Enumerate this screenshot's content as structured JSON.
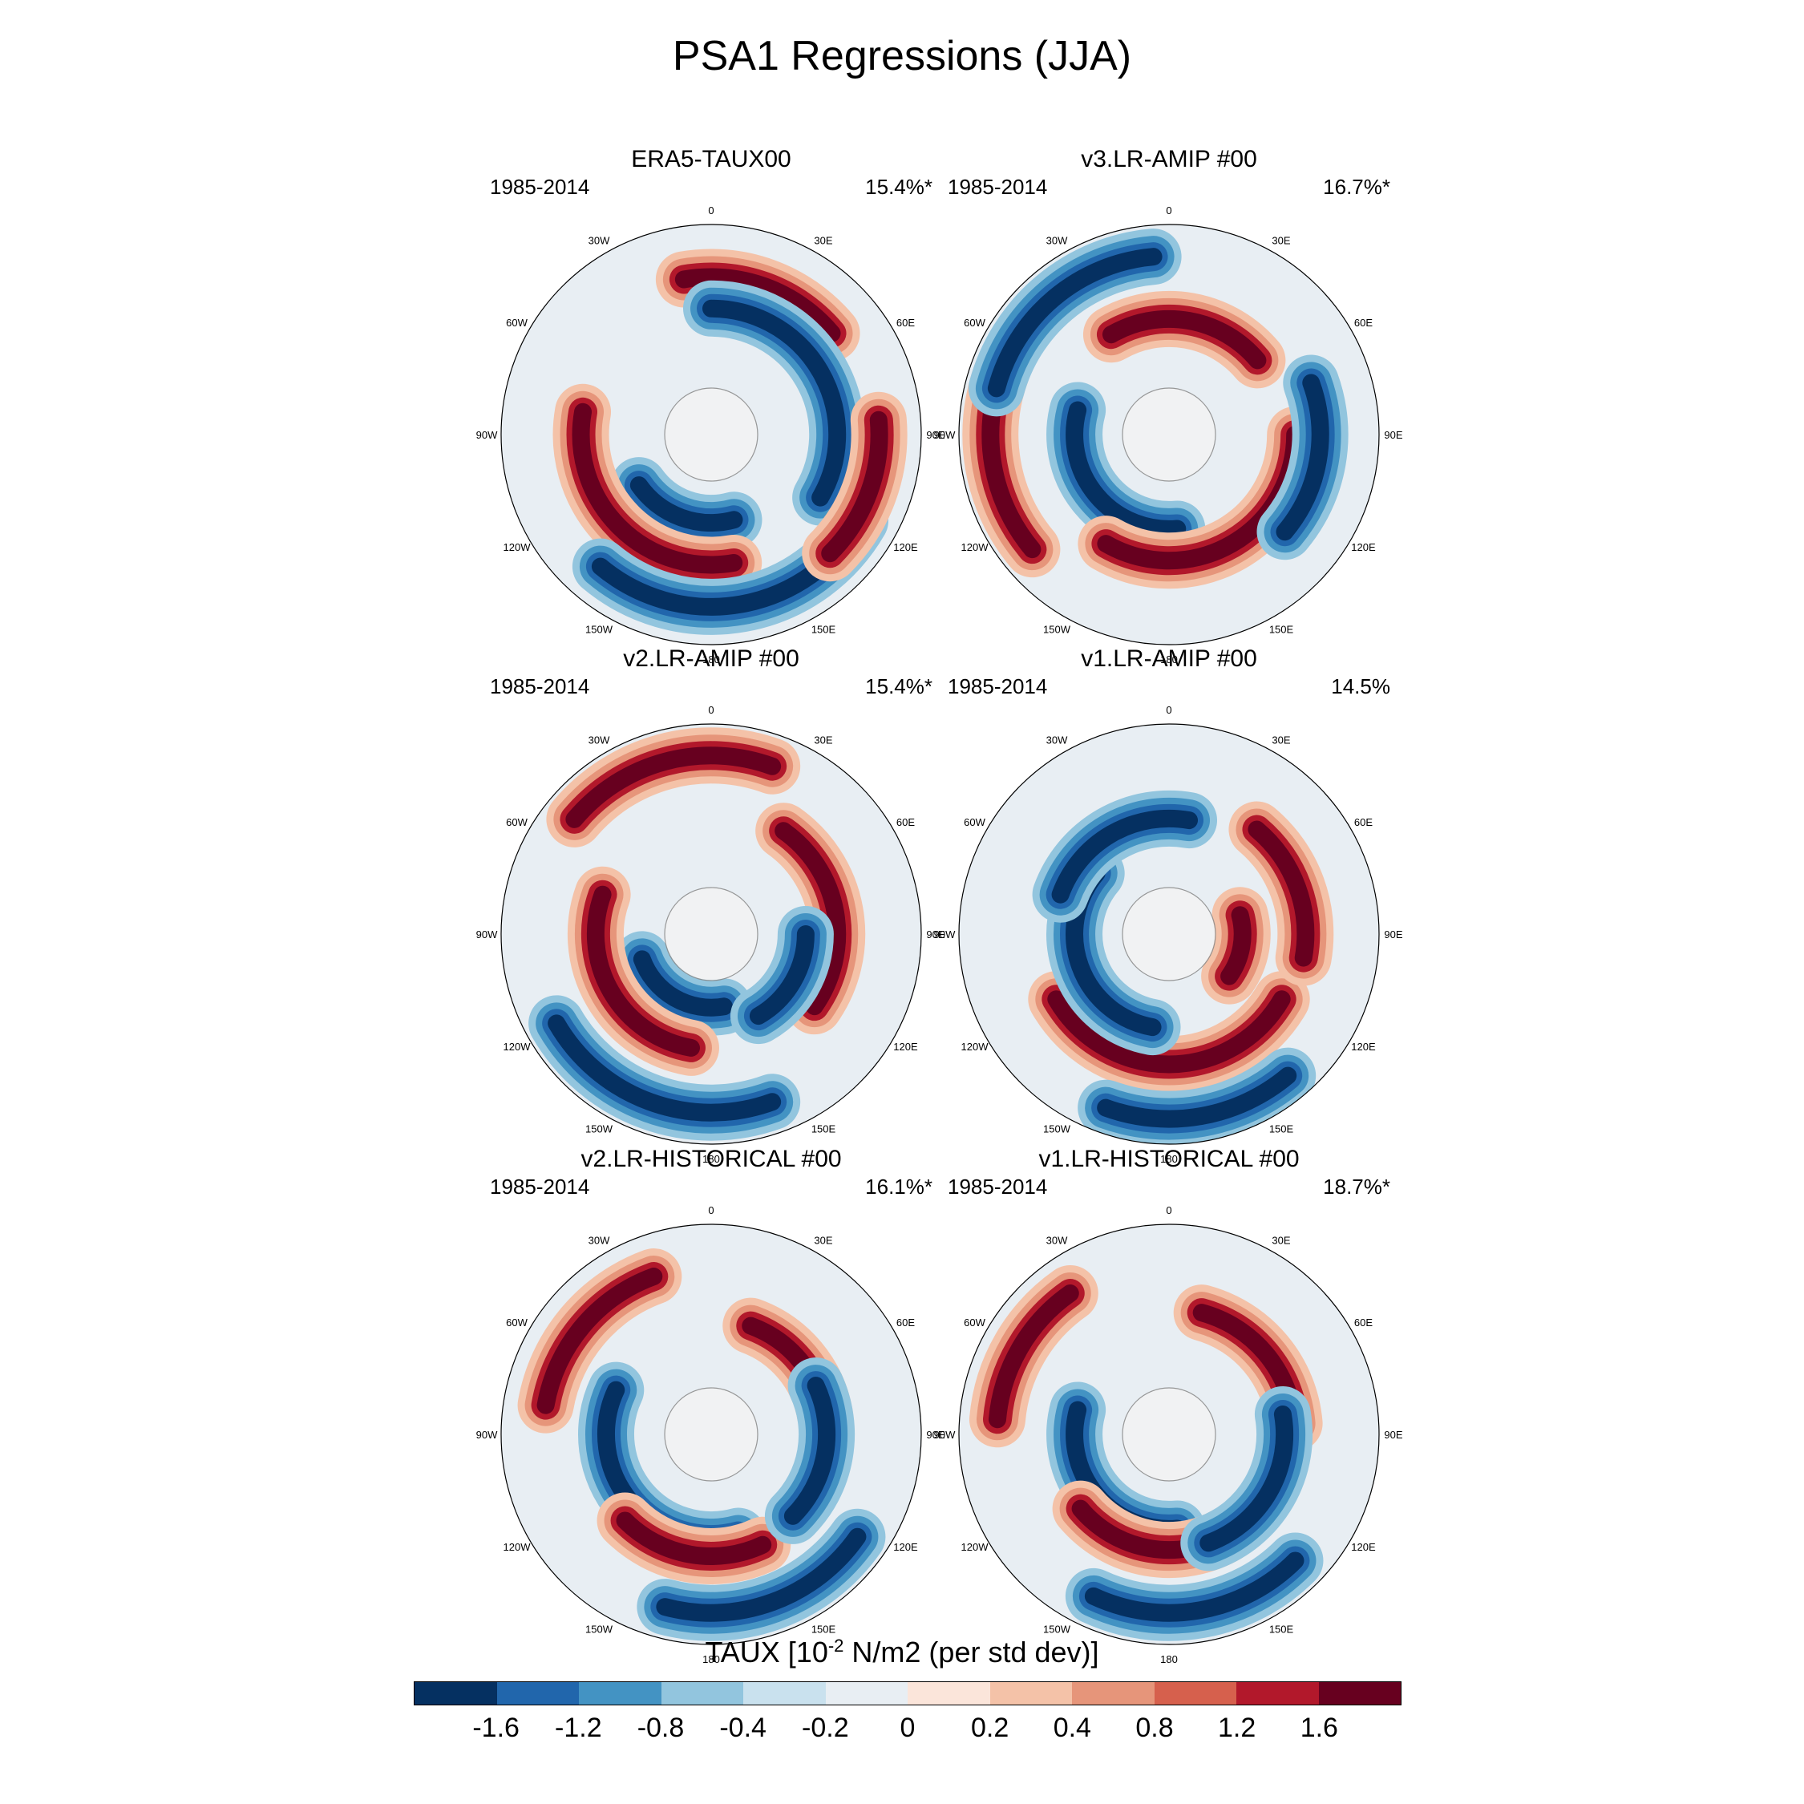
{
  "title": "PSA1 Regressions (JJA)",
  "colorbar": {
    "title_prefix": "TAUX [10",
    "title_exp": "-2",
    "title_suffix": " N/m2 (per std dev)]",
    "colors": [
      "#053061",
      "#2166ac",
      "#4393c3",
      "#92c5de",
      "#c9e1ee",
      "#e8eef3",
      "#fbe5da",
      "#f4c2a8",
      "#e6957a",
      "#d6604d",
      "#b2182b",
      "#67001f"
    ],
    "tick_labels": [
      "-1.6",
      "-1.2",
      "-0.8",
      "-0.4",
      "-0.2",
      "0",
      "0.2",
      "0.4",
      "0.8",
      "1.2",
      "1.6"
    ]
  },
  "lon_labels": [
    "0",
    "30E",
    "60E",
    "90E",
    "120E",
    "150E",
    "180",
    "150W",
    "120W",
    "90W",
    "60W",
    "30W"
  ],
  "panels": [
    {
      "title": "ERA5-TAUX00",
      "years": "1985-2014",
      "pct": "15.4%*",
      "lobes": [
        {
          "sign": "neg",
          "angle": 200,
          "r": 0.42,
          "span": 70
        },
        {
          "sign": "pos",
          "angle": 225,
          "r": 0.62,
          "span": 110
        },
        {
          "sign": "neg",
          "angle": 170,
          "r": 0.82,
          "span": 100
        },
        {
          "sign": "pos",
          "angle": 20,
          "r": 0.75,
          "span": 60
        },
        {
          "sign": "neg",
          "angle": 60,
          "r": 0.6,
          "span": 120
        },
        {
          "sign": "pos",
          "angle": 110,
          "r": 0.8,
          "span": 50
        }
      ]
    },
    {
      "title": "v3.LR-AMIP  #00",
      "years": "1985-2014",
      "pct": "16.7%*",
      "lobes": [
        {
          "sign": "neg",
          "angle": 230,
          "r": 0.45,
          "span": 110
        },
        {
          "sign": "pos",
          "angle": 150,
          "r": 0.6,
          "span": 120
        },
        {
          "sign": "pos",
          "angle": 10,
          "r": 0.55,
          "span": 80
        },
        {
          "sign": "neg",
          "angle": 100,
          "r": 0.72,
          "span": 60
        },
        {
          "sign": "pos",
          "angle": 260,
          "r": 0.85,
          "span": 60
        },
        {
          "sign": "neg",
          "angle": 320,
          "r": 0.85,
          "span": 70
        }
      ]
    },
    {
      "title": "v2.LR-AMIP  #00",
      "years": "1985-2014",
      "pct": "15.4%*",
      "lobes": [
        {
          "sign": "neg",
          "angle": 210,
          "r": 0.35,
          "span": 80
        },
        {
          "sign": "pos",
          "angle": 240,
          "r": 0.55,
          "span": 100
        },
        {
          "sign": "pos",
          "angle": 80,
          "r": 0.6,
          "span": 90
        },
        {
          "sign": "neg",
          "angle": 120,
          "r": 0.45,
          "span": 60
        },
        {
          "sign": "pos",
          "angle": 345,
          "r": 0.85,
          "span": 70
        },
        {
          "sign": "neg",
          "angle": 200,
          "r": 0.85,
          "span": 80
        }
      ]
    },
    {
      "title": "v1.LR-AMIP  #00",
      "years": "1985-2014",
      "pct": "14.5%",
      "lobes": [
        {
          "sign": "pos",
          "angle": 180,
          "r": 0.62,
          "span": 120
        },
        {
          "sign": "neg",
          "angle": 250,
          "r": 0.45,
          "span": 120
        },
        {
          "sign": "neg",
          "angle": 330,
          "r": 0.55,
          "span": 80
        },
        {
          "sign": "pos",
          "angle": 70,
          "r": 0.65,
          "span": 60
        },
        {
          "sign": "neg",
          "angle": 170,
          "r": 0.88,
          "span": 60
        },
        {
          "sign": "pos",
          "angle": 100,
          "r": 0.35,
          "span": 50
        }
      ]
    },
    {
      "title": "v2.LR-HISTORICAL  #00",
      "years": "1985-2014",
      "pct": "16.1%*",
      "lobes": [
        {
          "sign": "neg",
          "angle": 230,
          "r": 0.5,
          "span": 130
        },
        {
          "sign": "pos",
          "angle": 190,
          "r": 0.58,
          "span": 70
        },
        {
          "sign": "pos",
          "angle": 50,
          "r": 0.55,
          "span": 60
        },
        {
          "sign": "neg",
          "angle": 100,
          "r": 0.55,
          "span": 70
        },
        {
          "sign": "pos",
          "angle": 310,
          "r": 0.8,
          "span": 60
        },
        {
          "sign": "neg",
          "angle": 160,
          "r": 0.85,
          "span": 70
        }
      ]
    },
    {
      "title": "v1.LR-HISTORICAL  #00",
      "years": "1985-2014",
      "pct": "18.7%*",
      "lobes": [
        {
          "sign": "neg",
          "angle": 230,
          "r": 0.45,
          "span": 110
        },
        {
          "sign": "pos",
          "angle": 190,
          "r": 0.55,
          "span": 80
        },
        {
          "sign": "pos",
          "angle": 50,
          "r": 0.6,
          "span": 70
        },
        {
          "sign": "neg",
          "angle": 120,
          "r": 0.55,
          "span": 80
        },
        {
          "sign": "pos",
          "angle": 300,
          "r": 0.82,
          "span": 50
        },
        {
          "sign": "neg",
          "angle": 170,
          "r": 0.85,
          "span": 70
        }
      ]
    }
  ]
}
